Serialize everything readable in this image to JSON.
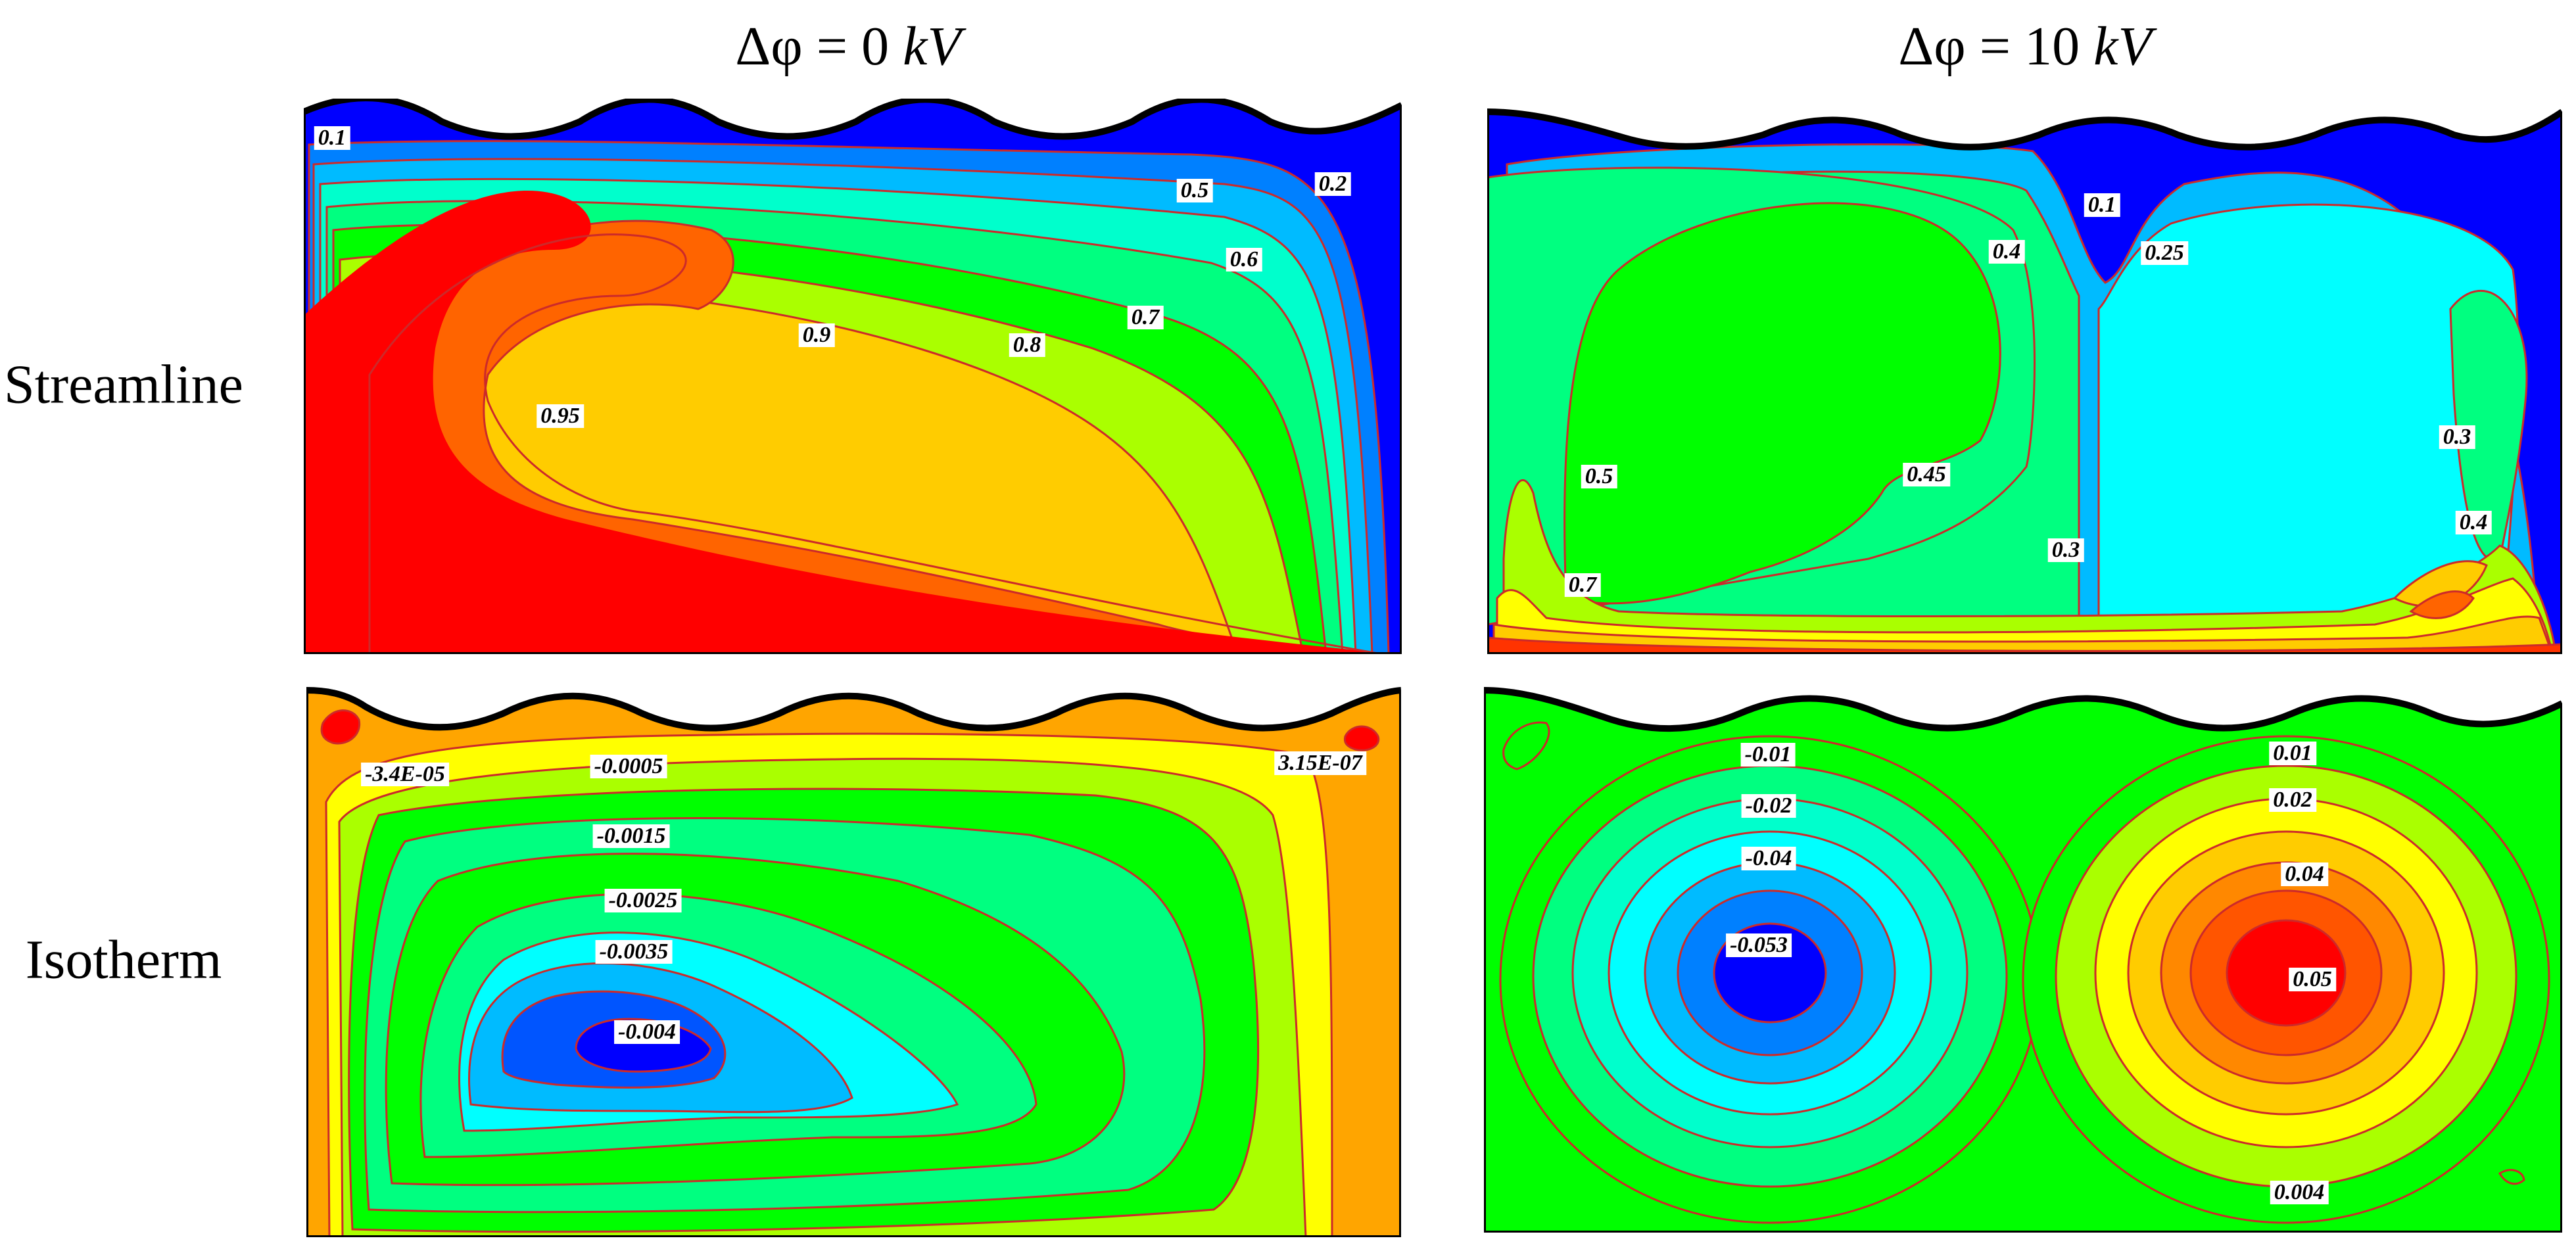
{
  "columns": [
    {
      "title_main": "Δφ = 0",
      "title_unit": "kV"
    },
    {
      "title_main": "Δφ = 10",
      "title_unit": "kV"
    }
  ],
  "rows": [
    {
      "label": "Streamline"
    },
    {
      "label": "Isotherm"
    }
  ],
  "panels": {
    "stream_0kv": {
      "labels": [
        "0.1",
        "0.2",
        "0.5",
        "0.6",
        "0.7",
        "0.8",
        "0.9",
        "0.95"
      ]
    },
    "stream_10kv": {
      "labels": [
        "0.1",
        "0.25",
        "0.4",
        "0.5",
        "0.45",
        "0.3",
        "0.3",
        "0.4",
        "0.7"
      ]
    },
    "iso_0kv": {
      "labels": [
        "-3.4E-05",
        "-0.0005",
        "3.15E-07",
        "-0.0015",
        "-0.0025",
        "-0.0035",
        "-0.004"
      ]
    },
    "iso_10kv": {
      "labels": [
        "-0.01",
        "-0.02",
        "-0.04",
        "-0.053",
        "0.01",
        "0.02",
        "0.04",
        "0.05",
        "0.004"
      ]
    }
  },
  "colors": {
    "red": "#ff0000",
    "orange_red": "#ff6400",
    "orange": "#ffa500",
    "gold": "#ffcc00",
    "yellow": "#ffff00",
    "yellow_green": "#aaff00",
    "green": "#00ff00",
    "spring_green": "#00ff80",
    "aquamarine": "#00ffcc",
    "cyan": "#00ffff",
    "sky_blue": "#00bbff",
    "azure": "#0080ff",
    "blue_mid": "#0055ff",
    "blue": "#0000ff",
    "contour_line": "#cc2a2a"
  }
}
